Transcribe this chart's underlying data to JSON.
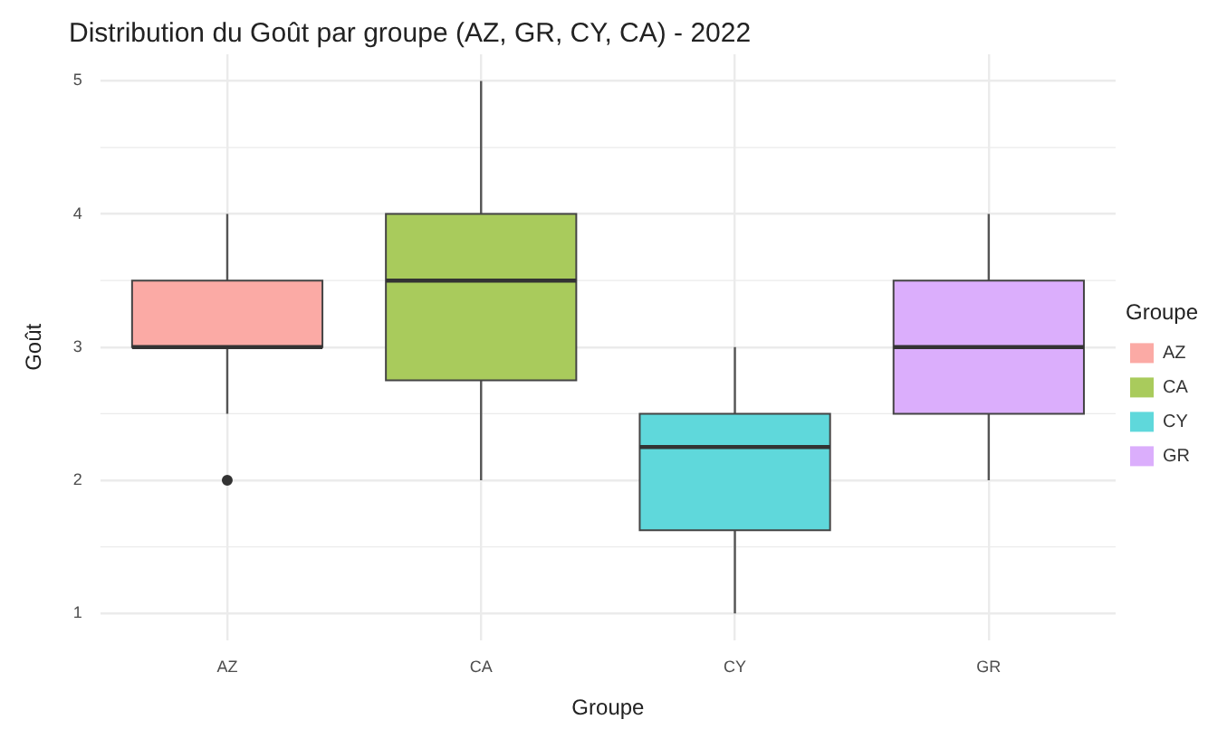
{
  "chart_data": {
    "type": "box",
    "title": "Distribution du Goût par groupe (AZ, GR, CY, CA) - 2022",
    "xlabel": "Groupe",
    "ylabel": "Goût",
    "legend_title": "Groupe",
    "legend": "right",
    "grid": true,
    "categories": [
      "AZ",
      "CA",
      "CY",
      "GR"
    ],
    "series": [
      {
        "name": "AZ",
        "color": "#fbaaa5",
        "boxes": [
          {
            "low": 2.5,
            "q1": 3,
            "median": 3,
            "q3": 3.5,
            "high": 4,
            "outliers": [
              2
            ]
          },
          null,
          null,
          null
        ]
      },
      {
        "name": "CA",
        "color": "#a9cb5c",
        "boxes": [
          null,
          {
            "low": 2,
            "q1": 2.75,
            "median": 3.5,
            "q3": 4,
            "high": 5
          },
          null,
          null
        ]
      },
      {
        "name": "CY",
        "color": "#5fd8db",
        "boxes": [
          null,
          null,
          {
            "low": 1,
            "q1": 1.625,
            "median": 2.25,
            "q3": 2.5,
            "high": 3
          },
          null
        ]
      },
      {
        "name": "GR",
        "color": "#dbaefc",
        "boxes": [
          null,
          null,
          null,
          {
            "low": 2,
            "q1": 2.5,
            "median": 3,
            "q3": 3.5,
            "high": 4
          }
        ]
      }
    ],
    "ylim": [
      0.8,
      5.2
    ],
    "yticks": [
      1,
      2,
      3,
      4,
      5
    ]
  }
}
